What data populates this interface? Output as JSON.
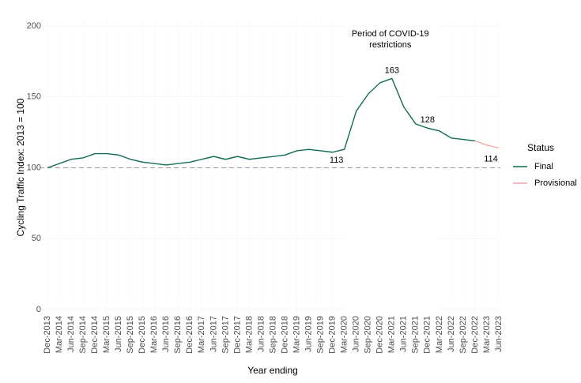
{
  "chart_data": {
    "type": "line",
    "x_label": "Year ending",
    "y_label": "Cycling Traffic Index: 2013 = 100",
    "categories": [
      "Dec-2013",
      "Mar-2014",
      "Jun-2014",
      "Sep-2014",
      "Dec-2014",
      "Mar-2015",
      "Jun-2015",
      "Sep-2015",
      "Dec-2015",
      "Mar-2016",
      "Jun-2016",
      "Sep-2016",
      "Dec-2016",
      "Mar-2017",
      "Jun-2017",
      "Sep-2017",
      "Dec-2017",
      "Mar-2018",
      "Jun-2018",
      "Sep-2018",
      "Dec-2018",
      "Mar-2019",
      "Jun-2019",
      "Sep-2019",
      "Dec-2019",
      "Mar-2020",
      "Jun-2020",
      "Sep-2020",
      "Dec-2020",
      "Mar-2021",
      "Jun-2021",
      "Sep-2021",
      "Dec-2021",
      "Mar-2022",
      "Jun-2022",
      "Sep-2022",
      "Dec-2022",
      "Mar-2023",
      "Jun-2023"
    ],
    "series": [
      {
        "name": "Final",
        "color": "#0f6b57",
        "values": [
          100,
          103,
          106,
          107,
          110,
          110,
          109,
          106,
          104,
          103,
          102,
          103,
          104,
          106,
          108,
          106,
          108,
          106,
          107,
          108,
          109,
          112,
          113,
          112,
          111,
          113,
          140,
          152,
          160,
          163,
          143,
          131,
          128,
          126,
          121,
          120,
          119,
          null,
          null
        ],
        "data_labels": [
          {
            "at": "Mar-2020",
            "position": "below"
          },
          {
            "at": "Mar-2021",
            "position": "above"
          },
          {
            "at": "Dec-2021",
            "position": "above"
          }
        ]
      },
      {
        "name": "Provisional",
        "color": "#f4a6a6",
        "values": [
          null,
          null,
          null,
          null,
          null,
          null,
          null,
          null,
          null,
          null,
          null,
          null,
          null,
          null,
          null,
          null,
          null,
          null,
          null,
          null,
          null,
          null,
          null,
          null,
          null,
          null,
          null,
          null,
          null,
          null,
          null,
          null,
          null,
          null,
          null,
          null,
          119,
          116,
          114
        ],
        "data_labels": [
          {
            "at": "Jun-2023",
            "position": "below"
          }
        ]
      }
    ],
    "ylim": [
      0,
      200
    ],
    "yticks": [
      0,
      50,
      100,
      150,
      200
    ],
    "grid": true,
    "hline": 100,
    "period": {
      "label": "Period of COVID-19 restrictions",
      "from": "Mar-2020",
      "to": "Mar-2022"
    },
    "legend_title": "Status",
    "legend": "right"
  }
}
